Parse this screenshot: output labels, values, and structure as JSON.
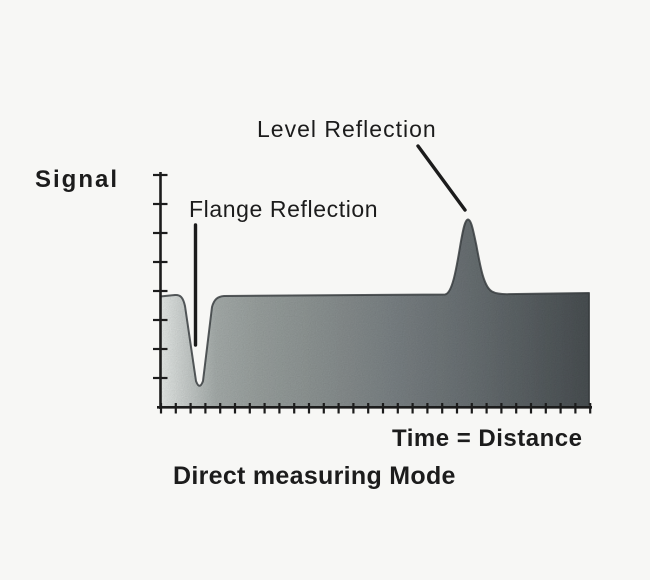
{
  "figure": {
    "y_axis_label": "Signal",
    "x_axis_label": "Time = Distance",
    "caption": "Direct measuring Mode",
    "annotations": [
      {
        "label": "Flange Reflection"
      },
      {
        "label": "Level Reflection"
      }
    ],
    "colors": {
      "ink": "#1c1c1c",
      "background": "#f7f7f5",
      "edge": "#383d40",
      "fill_gradient": [
        "#eef2f0",
        "#abb2b0",
        "#9ea5a3",
        "#939a99",
        "#7d8487",
        "#6b7275",
        "#4c5255"
      ]
    }
  }
}
